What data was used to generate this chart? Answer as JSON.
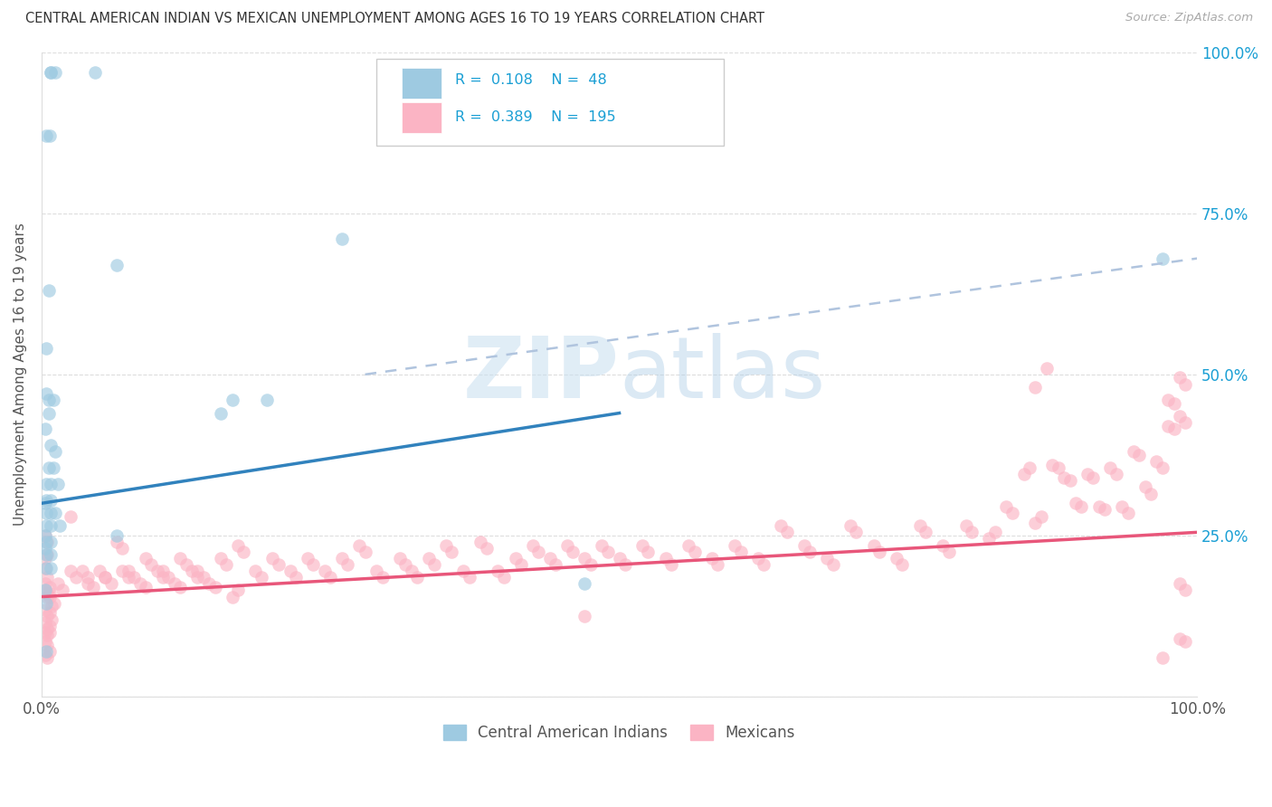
{
  "title": "CENTRAL AMERICAN INDIAN VS MEXICAN UNEMPLOYMENT AMONG AGES 16 TO 19 YEARS CORRELATION CHART",
  "source": "Source: ZipAtlas.com",
  "ylabel": "Unemployment Among Ages 16 to 19 years",
  "xlim": [
    0,
    1
  ],
  "ylim": [
    0,
    1
  ],
  "blue_R": 0.108,
  "blue_N": 48,
  "pink_R": 0.389,
  "pink_N": 195,
  "blue_color": "#9ecae1",
  "pink_color": "#fbb4c4",
  "blue_line_color": "#3182bd",
  "pink_line_color": "#e8567a",
  "gray_dash_color": "#b0c4de",
  "watermark_color": "#d6eaf8",
  "legend_R_color": "#1a9fd4",
  "legend_N_color": "#1a9fd4",
  "blue_trend": [
    0.0,
    0.5,
    0.3,
    0.44
  ],
  "pink_trend": [
    0.0,
    1.0,
    0.155,
    0.255
  ],
  "gray_trend": [
    0.28,
    1.0,
    0.5,
    0.68
  ],
  "blue_dots": [
    [
      0.008,
      0.968
    ],
    [
      0.012,
      0.968
    ],
    [
      0.008,
      0.968
    ],
    [
      0.004,
      0.87
    ],
    [
      0.007,
      0.87
    ],
    [
      0.046,
      0.968
    ],
    [
      0.006,
      0.63
    ],
    [
      0.065,
      0.67
    ],
    [
      0.006,
      0.46
    ],
    [
      0.01,
      0.46
    ],
    [
      0.006,
      0.44
    ],
    [
      0.008,
      0.39
    ],
    [
      0.012,
      0.38
    ],
    [
      0.006,
      0.355
    ],
    [
      0.01,
      0.355
    ],
    [
      0.004,
      0.33
    ],
    [
      0.008,
      0.33
    ],
    [
      0.014,
      0.33
    ],
    [
      0.004,
      0.305
    ],
    [
      0.008,
      0.305
    ],
    [
      0.004,
      0.285
    ],
    [
      0.008,
      0.285
    ],
    [
      0.012,
      0.285
    ],
    [
      0.004,
      0.265
    ],
    [
      0.008,
      0.265
    ],
    [
      0.004,
      0.24
    ],
    [
      0.008,
      0.24
    ],
    [
      0.004,
      0.22
    ],
    [
      0.008,
      0.22
    ],
    [
      0.004,
      0.2
    ],
    [
      0.008,
      0.2
    ],
    [
      0.016,
      0.265
    ],
    [
      0.165,
      0.46
    ],
    [
      0.195,
      0.46
    ],
    [
      0.26,
      0.71
    ],
    [
      0.97,
      0.68
    ],
    [
      0.004,
      0.07
    ],
    [
      0.004,
      0.145
    ],
    [
      0.065,
      0.25
    ],
    [
      0.004,
      0.54
    ],
    [
      0.004,
      0.47
    ],
    [
      0.003,
      0.415
    ],
    [
      0.003,
      0.165
    ],
    [
      0.003,
      0.3
    ],
    [
      0.003,
      0.25
    ],
    [
      0.003,
      0.23
    ],
    [
      0.155,
      0.44
    ],
    [
      0.47,
      0.175
    ]
  ],
  "pink_dots": [
    [
      0.003,
      0.175
    ],
    [
      0.005,
      0.16
    ],
    [
      0.007,
      0.155
    ],
    [
      0.009,
      0.14
    ],
    [
      0.011,
      0.145
    ],
    [
      0.003,
      0.2
    ],
    [
      0.005,
      0.185
    ],
    [
      0.007,
      0.17
    ],
    [
      0.003,
      0.165
    ],
    [
      0.005,
      0.155
    ],
    [
      0.007,
      0.16
    ],
    [
      0.003,
      0.135
    ],
    [
      0.005,
      0.125
    ],
    [
      0.007,
      0.13
    ],
    [
      0.003,
      0.115
    ],
    [
      0.005,
      0.105
    ],
    [
      0.007,
      0.11
    ],
    [
      0.009,
      0.12
    ],
    [
      0.003,
      0.1
    ],
    [
      0.005,
      0.095
    ],
    [
      0.007,
      0.1
    ],
    [
      0.003,
      0.085
    ],
    [
      0.005,
      0.08
    ],
    [
      0.003,
      0.065
    ],
    [
      0.005,
      0.06
    ],
    [
      0.007,
      0.07
    ],
    [
      0.003,
      0.215
    ],
    [
      0.005,
      0.22
    ],
    [
      0.003,
      0.25
    ],
    [
      0.005,
      0.24
    ],
    [
      0.014,
      0.175
    ],
    [
      0.018,
      0.165
    ],
    [
      0.025,
      0.195
    ],
    [
      0.03,
      0.185
    ],
    [
      0.04,
      0.175
    ],
    [
      0.045,
      0.17
    ],
    [
      0.055,
      0.185
    ],
    [
      0.06,
      0.175
    ],
    [
      0.07,
      0.195
    ],
    [
      0.075,
      0.185
    ],
    [
      0.085,
      0.175
    ],
    [
      0.09,
      0.17
    ],
    [
      0.1,
      0.195
    ],
    [
      0.105,
      0.185
    ],
    [
      0.115,
      0.175
    ],
    [
      0.12,
      0.17
    ],
    [
      0.13,
      0.195
    ],
    [
      0.135,
      0.185
    ],
    [
      0.145,
      0.175
    ],
    [
      0.15,
      0.17
    ],
    [
      0.165,
      0.155
    ],
    [
      0.17,
      0.165
    ],
    [
      0.025,
      0.28
    ],
    [
      0.035,
      0.195
    ],
    [
      0.04,
      0.185
    ],
    [
      0.05,
      0.195
    ],
    [
      0.055,
      0.185
    ],
    [
      0.065,
      0.24
    ],
    [
      0.07,
      0.23
    ],
    [
      0.075,
      0.195
    ],
    [
      0.08,
      0.185
    ],
    [
      0.09,
      0.215
    ],
    [
      0.095,
      0.205
    ],
    [
      0.105,
      0.195
    ],
    [
      0.11,
      0.185
    ],
    [
      0.12,
      0.215
    ],
    [
      0.125,
      0.205
    ],
    [
      0.135,
      0.195
    ],
    [
      0.14,
      0.185
    ],
    [
      0.155,
      0.215
    ],
    [
      0.16,
      0.205
    ],
    [
      0.17,
      0.235
    ],
    [
      0.175,
      0.225
    ],
    [
      0.185,
      0.195
    ],
    [
      0.19,
      0.185
    ],
    [
      0.2,
      0.215
    ],
    [
      0.205,
      0.205
    ],
    [
      0.215,
      0.195
    ],
    [
      0.22,
      0.185
    ],
    [
      0.23,
      0.215
    ],
    [
      0.235,
      0.205
    ],
    [
      0.245,
      0.195
    ],
    [
      0.25,
      0.185
    ],
    [
      0.26,
      0.215
    ],
    [
      0.265,
      0.205
    ],
    [
      0.275,
      0.235
    ],
    [
      0.28,
      0.225
    ],
    [
      0.29,
      0.195
    ],
    [
      0.295,
      0.185
    ],
    [
      0.31,
      0.215
    ],
    [
      0.315,
      0.205
    ],
    [
      0.32,
      0.195
    ],
    [
      0.325,
      0.185
    ],
    [
      0.335,
      0.215
    ],
    [
      0.34,
      0.205
    ],
    [
      0.35,
      0.235
    ],
    [
      0.355,
      0.225
    ],
    [
      0.365,
      0.195
    ],
    [
      0.37,
      0.185
    ],
    [
      0.38,
      0.24
    ],
    [
      0.385,
      0.23
    ],
    [
      0.395,
      0.195
    ],
    [
      0.4,
      0.185
    ],
    [
      0.41,
      0.215
    ],
    [
      0.415,
      0.205
    ],
    [
      0.425,
      0.235
    ],
    [
      0.43,
      0.225
    ],
    [
      0.44,
      0.215
    ],
    [
      0.445,
      0.205
    ],
    [
      0.455,
      0.235
    ],
    [
      0.46,
      0.225
    ],
    [
      0.47,
      0.215
    ],
    [
      0.475,
      0.205
    ],
    [
      0.485,
      0.235
    ],
    [
      0.49,
      0.225
    ],
    [
      0.5,
      0.215
    ],
    [
      0.505,
      0.205
    ],
    [
      0.47,
      0.125
    ],
    [
      0.52,
      0.235
    ],
    [
      0.525,
      0.225
    ],
    [
      0.54,
      0.215
    ],
    [
      0.545,
      0.205
    ],
    [
      0.56,
      0.235
    ],
    [
      0.565,
      0.225
    ],
    [
      0.58,
      0.215
    ],
    [
      0.585,
      0.205
    ],
    [
      0.6,
      0.235
    ],
    [
      0.605,
      0.225
    ],
    [
      0.62,
      0.215
    ],
    [
      0.625,
      0.205
    ],
    [
      0.64,
      0.265
    ],
    [
      0.645,
      0.255
    ],
    [
      0.66,
      0.235
    ],
    [
      0.665,
      0.225
    ],
    [
      0.68,
      0.215
    ],
    [
      0.685,
      0.205
    ],
    [
      0.7,
      0.265
    ],
    [
      0.705,
      0.255
    ],
    [
      0.72,
      0.235
    ],
    [
      0.725,
      0.225
    ],
    [
      0.74,
      0.215
    ],
    [
      0.745,
      0.205
    ],
    [
      0.76,
      0.265
    ],
    [
      0.765,
      0.255
    ],
    [
      0.78,
      0.235
    ],
    [
      0.785,
      0.225
    ],
    [
      0.8,
      0.265
    ],
    [
      0.805,
      0.255
    ],
    [
      0.82,
      0.245
    ],
    [
      0.825,
      0.255
    ],
    [
      0.835,
      0.295
    ],
    [
      0.84,
      0.285
    ],
    [
      0.85,
      0.345
    ],
    [
      0.855,
      0.355
    ],
    [
      0.86,
      0.27
    ],
    [
      0.865,
      0.28
    ],
    [
      0.875,
      0.36
    ],
    [
      0.88,
      0.355
    ],
    [
      0.885,
      0.34
    ],
    [
      0.89,
      0.335
    ],
    [
      0.895,
      0.3
    ],
    [
      0.9,
      0.295
    ],
    [
      0.905,
      0.345
    ],
    [
      0.91,
      0.34
    ],
    [
      0.915,
      0.295
    ],
    [
      0.92,
      0.29
    ],
    [
      0.925,
      0.355
    ],
    [
      0.93,
      0.345
    ],
    [
      0.935,
      0.295
    ],
    [
      0.94,
      0.285
    ],
    [
      0.945,
      0.38
    ],
    [
      0.95,
      0.375
    ],
    [
      0.955,
      0.325
    ],
    [
      0.96,
      0.315
    ],
    [
      0.965,
      0.365
    ],
    [
      0.97,
      0.355
    ],
    [
      0.975,
      0.42
    ],
    [
      0.98,
      0.415
    ],
    [
      0.975,
      0.46
    ],
    [
      0.98,
      0.455
    ],
    [
      0.985,
      0.495
    ],
    [
      0.99,
      0.485
    ],
    [
      0.985,
      0.435
    ],
    [
      0.99,
      0.425
    ],
    [
      0.985,
      0.175
    ],
    [
      0.99,
      0.165
    ],
    [
      0.985,
      0.09
    ],
    [
      0.99,
      0.085
    ],
    [
      0.97,
      0.06
    ],
    [
      0.86,
      0.48
    ],
    [
      0.87,
      0.51
    ]
  ]
}
